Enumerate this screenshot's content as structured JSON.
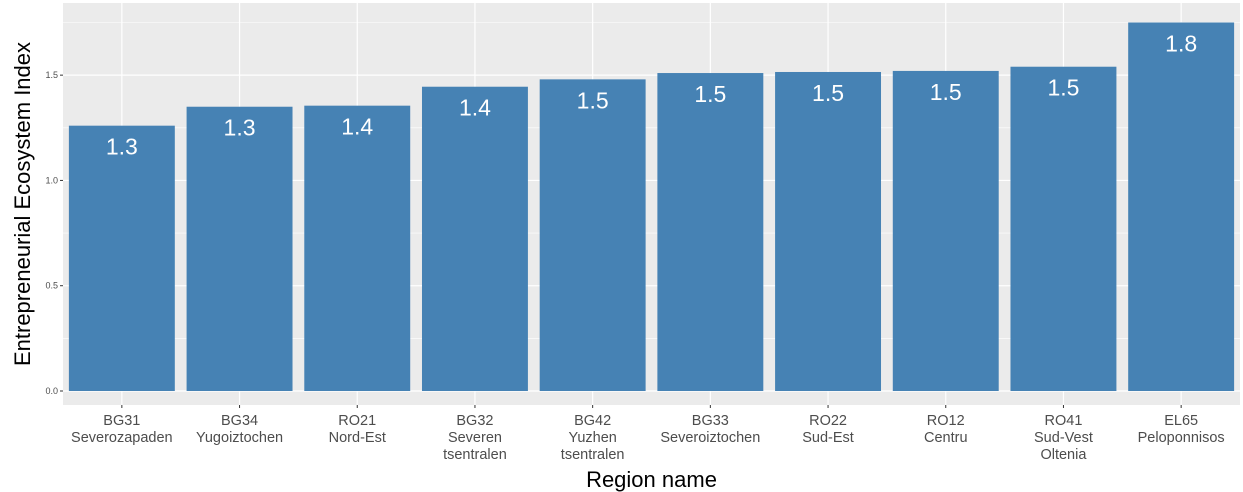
{
  "chart_data": {
    "type": "bar",
    "title": "",
    "xlabel": "Region name",
    "ylabel": "Entrepreneurial Ecosystem Index",
    "ylim": [
      0,
      1.78
    ],
    "yticks": [
      "0.0",
      "0.5",
      "1.0",
      "1.5"
    ],
    "grid": true,
    "bar_color": "#4682b4",
    "panel_color": "#ebebeb",
    "categories": [
      [
        "BG31",
        "Severozapaden"
      ],
      [
        "BG34",
        "Yugoiztochen"
      ],
      [
        "RO21",
        "Nord-Est"
      ],
      [
        "BG32",
        "Severen",
        "tsentralen"
      ],
      [
        "BG42",
        "Yuzhen",
        "tsentralen"
      ],
      [
        "BG33",
        "Severoiztochen"
      ],
      [
        "RO22",
        "Sud-Est"
      ],
      [
        "RO12",
        "Centru"
      ],
      [
        "RO41",
        "Sud-Vest",
        "Oltenia"
      ],
      [
        "EL65",
        "Peloponnisos"
      ]
    ],
    "values": [
      1.26,
      1.35,
      1.355,
      1.445,
      1.48,
      1.51,
      1.515,
      1.52,
      1.54,
      1.75
    ],
    "data_labels": [
      "1.3",
      "1.3",
      "1.4",
      "1.4",
      "1.5",
      "1.5",
      "1.5",
      "1.5",
      "1.5",
      "1.8"
    ]
  }
}
